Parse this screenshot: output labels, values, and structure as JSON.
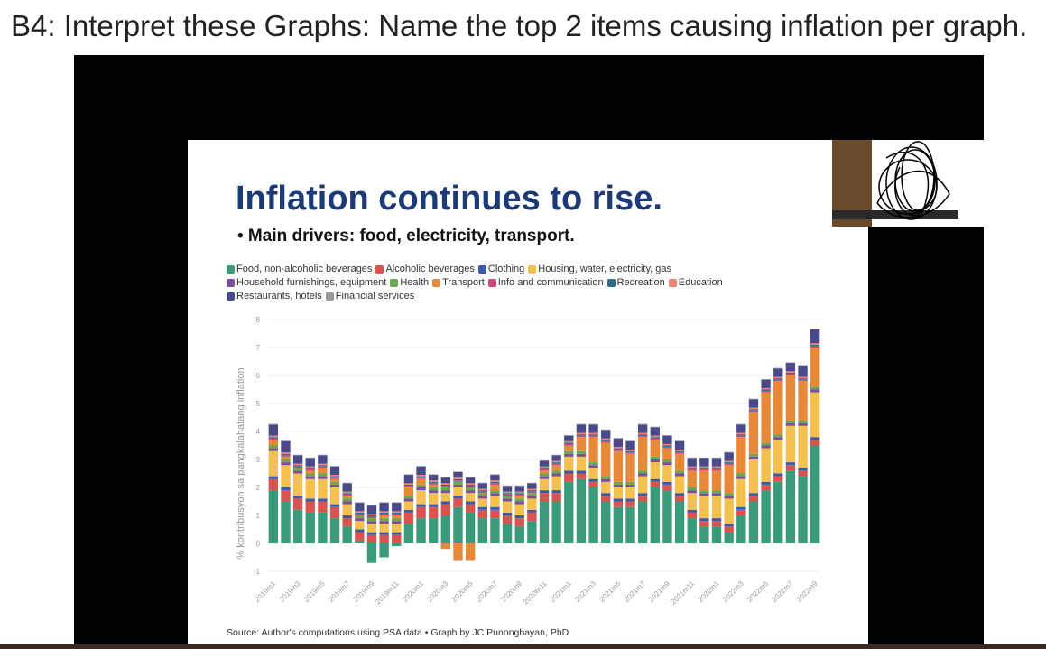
{
  "header": "B4: Interpret these Graphs: Name the top 2 items causing inflation per graph.",
  "chart_data": {
    "type": "stacked-bar",
    "title": "Inflation continues to rise.",
    "subtitle": "• Main drivers: food, electricity, transport.",
    "source": "Source: Author's computations using PSA data • Graph by JC Punongbayan, PhD",
    "y_label": "% kontribusyon sa pangkalahatang inflation",
    "ylim": [
      -1,
      8
    ],
    "yticks": [
      -1,
      0,
      1,
      2,
      3,
      4,
      5,
      6,
      7,
      8
    ],
    "categories": [
      "2019m1",
      null,
      "2019m3",
      null,
      "2019m5",
      null,
      "2019m7",
      null,
      "2019m9",
      null,
      "2019m11",
      null,
      "2020m1",
      null,
      "2020m3",
      null,
      "2020m5",
      null,
      "2020m7",
      null,
      "2020m9",
      null,
      "2020m11",
      null,
      "2021m1",
      null,
      "2021m3",
      null,
      "2021m5",
      null,
      "2021m7",
      null,
      "2021m9",
      null,
      "2021m11",
      null,
      "2022m1",
      null,
      "2022m3",
      null,
      "2022m5",
      null,
      "2022m7",
      null,
      "2022m9"
    ],
    "series": [
      {
        "name": "Food, non-alcoholic beverages",
        "color": "#3a9b7c",
        "values": [
          1.9,
          1.5,
          1.2,
          1.1,
          1.1,
          0.9,
          0.6,
          0.1,
          -0.7,
          -0.5,
          -0.1,
          0.7,
          0.9,
          0.9,
          1.0,
          1.3,
          1.1,
          0.9,
          0.9,
          0.7,
          0.6,
          0.8,
          1.5,
          1.5,
          2.2,
          2.3,
          2.0,
          1.5,
          1.3,
          1.3,
          1.5,
          2.0,
          1.9,
          1.5,
          0.9,
          0.6,
          0.6,
          0.4,
          1.0,
          1.5,
          1.9,
          2.2,
          2.6,
          2.4,
          3.5
        ]
      },
      {
        "name": "Alcoholic beverages",
        "color": "#d9534f",
        "values": [
          0.4,
          0.4,
          0.4,
          0.4,
          0.4,
          0.4,
          0.3,
          0.3,
          0.3,
          0.3,
          0.3,
          0.4,
          0.4,
          0.4,
          0.4,
          0.3,
          0.3,
          0.3,
          0.3,
          0.3,
          0.3,
          0.3,
          0.3,
          0.3,
          0.3,
          0.2,
          0.2,
          0.2,
          0.2,
          0.2,
          0.2,
          0.2,
          0.2,
          0.2,
          0.2,
          0.2,
          0.2,
          0.2,
          0.2,
          0.2,
          0.2,
          0.2,
          0.2,
          0.2,
          0.2
        ]
      },
      {
        "name": "Clothing",
        "color": "#3b5ba9",
        "values": [
          0.1,
          0.1,
          0.1,
          0.1,
          0.1,
          0.1,
          0.1,
          0.1,
          0.1,
          0.1,
          0.1,
          0.1,
          0.1,
          0.1,
          0.1,
          0.1,
          0.1,
          0.1,
          0.1,
          0.1,
          0.1,
          0.1,
          0.1,
          0.1,
          0.1,
          0.1,
          0.1,
          0.1,
          0.1,
          0.1,
          0.1,
          0.1,
          0.1,
          0.1,
          0.1,
          0.1,
          0.1,
          0.1,
          0.1,
          0.1,
          0.1,
          0.1,
          0.1,
          0.1,
          0.1
        ]
      },
      {
        "name": "Housing, water, electricity, gas",
        "color": "#f4c050",
        "values": [
          0.9,
          0.8,
          0.8,
          0.7,
          0.7,
          0.6,
          0.4,
          0.3,
          0.3,
          0.3,
          0.3,
          0.3,
          0.5,
          0.4,
          0.3,
          0.3,
          0.3,
          0.3,
          0.4,
          0.4,
          0.4,
          0.4,
          0.4,
          0.5,
          0.5,
          0.5,
          0.4,
          0.4,
          0.4,
          0.4,
          0.6,
          0.6,
          0.6,
          0.6,
          0.6,
          0.8,
          0.8,
          0.9,
          1.0,
          1.2,
          1.2,
          1.2,
          1.3,
          1.5,
          1.6
        ]
      },
      {
        "name": "Household furnishings, equipment",
        "color": "#7b4f9d",
        "values": [
          0.1,
          0.1,
          0.1,
          0.1,
          0.1,
          0.1,
          0.1,
          0.1,
          0.1,
          0.1,
          0.1,
          0.1,
          0.1,
          0.1,
          0.1,
          0.1,
          0.1,
          0.1,
          0.1,
          0.1,
          0.1,
          0.1,
          0.1,
          0.1,
          0.1,
          0.1,
          0.1,
          0.1,
          0.1,
          0.1,
          0.1,
          0.1,
          0.1,
          0.1,
          0.1,
          0.1,
          0.1,
          0.1,
          0.1,
          0.1,
          0.1,
          0.1,
          0.1,
          0.1,
          0.1
        ]
      },
      {
        "name": "Health",
        "color": "#6aa84f",
        "values": [
          0.1,
          0.1,
          0.1,
          0.1,
          0.1,
          0.1,
          0.1,
          0.1,
          0.1,
          0.1,
          0.1,
          0.1,
          0.1,
          0.1,
          0.1,
          0.1,
          0.1,
          0.1,
          0.1,
          0.1,
          0.1,
          0.1,
          0.1,
          0.1,
          0.1,
          0.1,
          0.1,
          0.1,
          0.1,
          0.1,
          0.1,
          0.1,
          0.1,
          0.1,
          0.1,
          0.1,
          0.1,
          0.1,
          0.1,
          0.1,
          0.1,
          0.1,
          0.1,
          0.1,
          0.1
        ]
      },
      {
        "name": "Transport",
        "color": "#e8893a",
        "values": [
          0.2,
          0.1,
          0.0,
          0.1,
          0.2,
          0.1,
          0.1,
          0.0,
          0.0,
          0.1,
          0.1,
          0.3,
          0.2,
          0.1,
          -0.2,
          -0.6,
          -0.6,
          0.0,
          0.2,
          0.0,
          0.1,
          0.0,
          0.1,
          0.2,
          0.2,
          0.5,
          0.9,
          1.2,
          1.1,
          1.0,
          1.2,
          0.6,
          0.4,
          0.6,
          0.6,
          0.7,
          0.7,
          1.0,
          1.3,
          1.5,
          1.8,
          1.9,
          1.6,
          1.4,
          1.4
        ]
      },
      {
        "name": "Info and communication",
        "color": "#d6457e",
        "values": [
          0.05,
          0.05,
          0.05,
          0.05,
          0.05,
          0.05,
          0.05,
          0.05,
          0.05,
          0.05,
          0.05,
          0.05,
          0.05,
          0.05,
          0.05,
          0.05,
          0.05,
          0.05,
          0.05,
          0.05,
          0.05,
          0.05,
          0.05,
          0.05,
          0.05,
          0.05,
          0.05,
          0.05,
          0.05,
          0.05,
          0.05,
          0.05,
          0.05,
          0.05,
          0.05,
          0.05,
          0.05,
          0.05,
          0.05,
          0.05,
          0.05,
          0.05,
          0.05,
          0.05,
          0.05
        ]
      },
      {
        "name": "Recreation",
        "color": "#2e6e8e",
        "values": [
          0.05,
          0.05,
          0.05,
          0.05,
          0.05,
          0.05,
          0.05,
          0.05,
          0.05,
          0.05,
          0.05,
          0.05,
          0.05,
          0.05,
          0.05,
          0.05,
          0.05,
          0.05,
          0.05,
          0.05,
          0.05,
          0.05,
          0.05,
          0.05,
          0.05,
          0.05,
          0.05,
          0.05,
          0.05,
          0.05,
          0.05,
          0.05,
          0.05,
          0.05,
          0.05,
          0.05,
          0.05,
          0.05,
          0.05,
          0.05,
          0.05,
          0.05,
          0.05,
          0.05,
          0.05
        ]
      },
      {
        "name": "Education",
        "color": "#f08070",
        "values": [
          0.05,
          0.05,
          0.05,
          0.05,
          0.05,
          0.05,
          0.05,
          0.05,
          0.05,
          0.05,
          0.05,
          0.05,
          0.05,
          0.05,
          0.05,
          0.05,
          0.05,
          0.05,
          0.05,
          0.05,
          0.05,
          0.05,
          0.05,
          0.05,
          0.05,
          0.05,
          0.05,
          0.05,
          0.05,
          0.05,
          0.05,
          0.05,
          0.05,
          0.05,
          0.05,
          0.05,
          0.05,
          0.05,
          0.05,
          0.05,
          0.05,
          0.05,
          0.05,
          0.05,
          0.05
        ]
      },
      {
        "name": "Restaurants, hotels",
        "color": "#4a4a8a",
        "values": [
          0.4,
          0.4,
          0.3,
          0.3,
          0.3,
          0.3,
          0.3,
          0.3,
          0.3,
          0.3,
          0.3,
          0.3,
          0.3,
          0.2,
          0.2,
          0.2,
          0.2,
          0.2,
          0.2,
          0.2,
          0.2,
          0.2,
          0.2,
          0.2,
          0.2,
          0.3,
          0.3,
          0.3,
          0.3,
          0.3,
          0.3,
          0.3,
          0.3,
          0.3,
          0.3,
          0.3,
          0.3,
          0.3,
          0.3,
          0.3,
          0.3,
          0.3,
          0.3,
          0.4,
          0.5
        ]
      },
      {
        "name": "Financial services",
        "color": "#999999",
        "values": [
          0.02,
          0.02,
          0.02,
          0.02,
          0.02,
          0.02,
          0.02,
          0.02,
          0.02,
          0.02,
          0.02,
          0.02,
          0.02,
          0.02,
          0.02,
          0.02,
          0.02,
          0.02,
          0.02,
          0.02,
          0.02,
          0.02,
          0.02,
          0.02,
          0.02,
          0.02,
          0.02,
          0.02,
          0.02,
          0.02,
          0.02,
          0.02,
          0.02,
          0.02,
          0.02,
          0.02,
          0.02,
          0.02,
          0.02,
          0.02,
          0.02,
          0.02,
          0.02,
          0.02,
          0.02
        ]
      }
    ]
  }
}
